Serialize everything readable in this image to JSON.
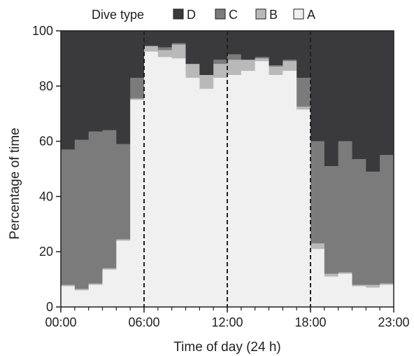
{
  "chart_data": {
    "type": "bar",
    "stacked": true,
    "title": "",
    "xlabel": "Time of day (24 h)",
    "ylabel": "Percentage of time",
    "ylim": [
      0,
      100
    ],
    "y_ticks": [
      "0",
      "20",
      "40",
      "60",
      "80",
      "100"
    ],
    "x_ticks": [
      "00:00",
      "06:00",
      "12:00",
      "18:00",
      "23:00"
    ],
    "x_tick_hours": [
      0,
      6,
      12,
      18,
      24
    ],
    "categories": [
      "00",
      "01",
      "02",
      "03",
      "04",
      "05",
      "06",
      "07",
      "08",
      "09",
      "10",
      "11",
      "12",
      "13",
      "14",
      "15",
      "16",
      "17",
      "18",
      "19",
      "20",
      "21",
      "22",
      "23"
    ],
    "legend": {
      "title": "Dive type",
      "placement": "top",
      "items": [
        "D",
        "C",
        "B",
        "A"
      ]
    },
    "reference_lines_hours": [
      6,
      12,
      18
    ],
    "series": [
      {
        "name": "A",
        "color": "#f0f0f0",
        "values": [
          7.5,
          6,
          8,
          13.5,
          24,
          75,
          92.5,
          90.5,
          90,
          83,
          79,
          83,
          84,
          85.5,
          89,
          84,
          85.5,
          71.5,
          21,
          11,
          12,
          7.5,
          7,
          8
        ]
      },
      {
        "name": "B",
        "color": "#b9b9b9",
        "values": [
          0.5,
          0.5,
          0.5,
          0.5,
          0.5,
          0.5,
          2,
          2.5,
          5,
          5,
          5,
          5,
          5.5,
          4,
          1,
          3,
          3.5,
          1,
          2,
          1,
          0.5,
          0.5,
          1,
          0.5
        ]
      },
      {
        "name": "C",
        "color": "#7b7b7c",
        "values": [
          49,
          54,
          55,
          50,
          34.5,
          7.5,
          0,
          1,
          0.5,
          0,
          0,
          1.5,
          2,
          0,
          0.5,
          0.5,
          0.5,
          10.5,
          37,
          39,
          47.5,
          45.5,
          41,
          46.5
        ]
      },
      {
        "name": "D",
        "color": "#3a393b",
        "values": [
          43,
          39.5,
          36.5,
          36,
          41,
          17,
          5.5,
          6,
          4.5,
          12,
          16,
          10.5,
          8.5,
          10.5,
          9.5,
          12.5,
          10.5,
          17,
          40,
          49,
          40,
          46.5,
          51,
          45
        ]
      }
    ]
  }
}
